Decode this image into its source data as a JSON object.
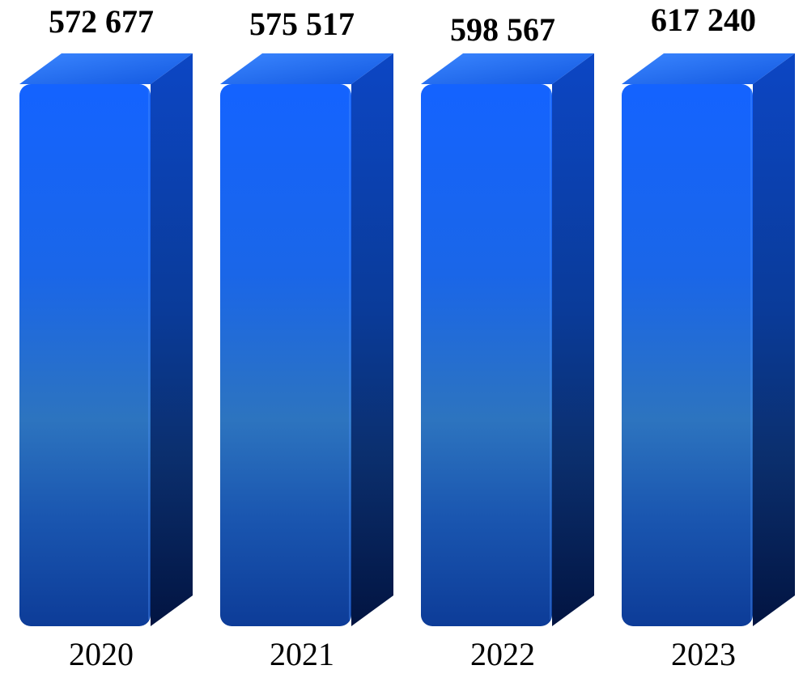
{
  "chart_data": {
    "type": "bar",
    "categories": [
      "2020",
      "2021",
      "2022",
      "2023"
    ],
    "values": [
      572677,
      575517,
      598567,
      617240
    ],
    "value_labels": [
      "572 677",
      "575 517",
      "598 567",
      "617 240"
    ],
    "title": "",
    "xlabel": "",
    "ylabel": "",
    "grid": false,
    "legend": "none",
    "colors": {
      "front_top": "#1a66f2",
      "front_mid": "#2a72c8",
      "front_bottom": "#0d3a96",
      "side_top": "#0b3fb0",
      "side_bottom": "#031a52",
      "cap": "#2b7af9"
    }
  }
}
